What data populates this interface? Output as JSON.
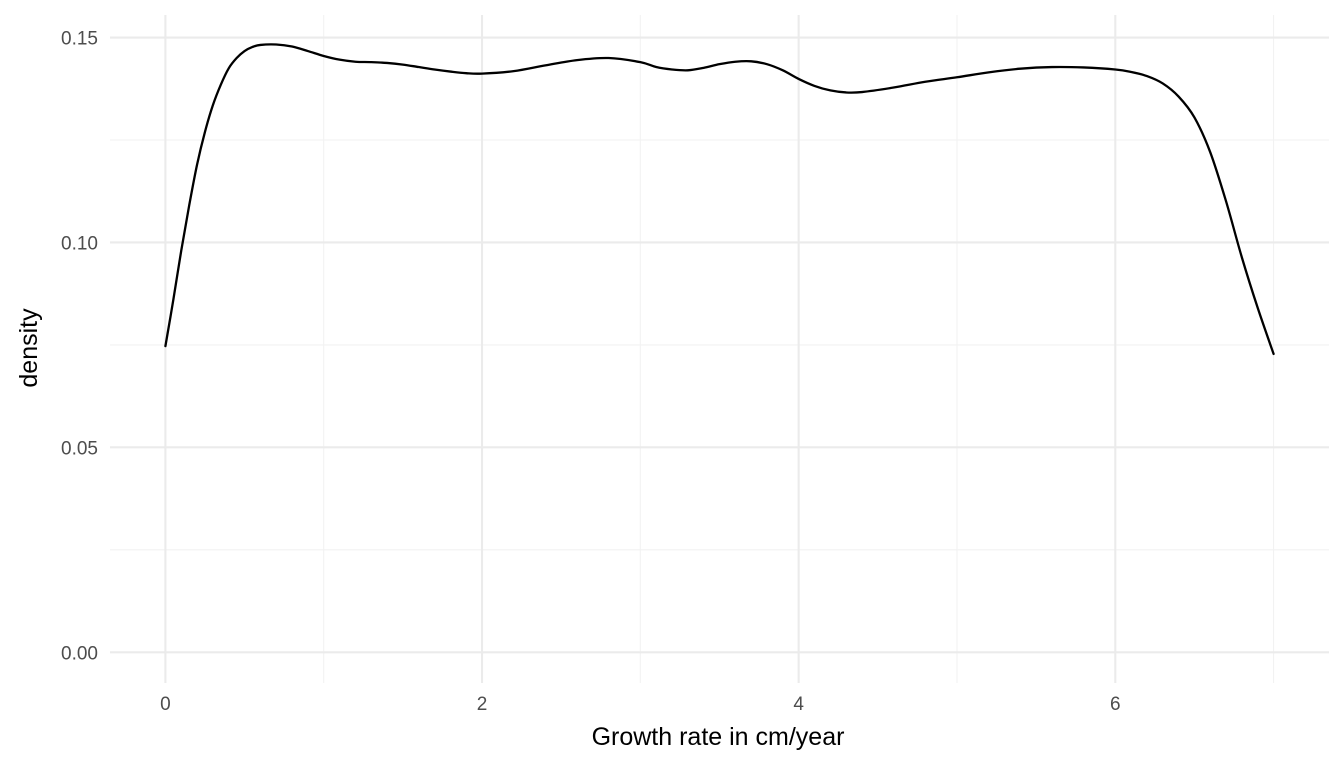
{
  "chart_data": {
    "type": "line",
    "title": "",
    "xlabel": "Growth rate in cm/year",
    "ylabel": "density",
    "xlim": [
      -0.35,
      7.35
    ],
    "ylim": [
      -0.0075,
      0.1555
    ],
    "x_ticks": [
      0,
      2,
      4,
      6
    ],
    "x_tick_labels": [
      "0",
      "2",
      "4",
      "6"
    ],
    "x_minor_ticks": [
      1,
      3,
      5,
      7
    ],
    "y_ticks": [
      0.0,
      0.05,
      0.1,
      0.15
    ],
    "y_tick_labels": [
      "0.00",
      "0.05",
      "0.10",
      "0.15"
    ],
    "y_minor_ticks": [
      0.025,
      0.075,
      0.125
    ],
    "grid": true,
    "legend": "none",
    "line_color": "#000000",
    "series": [
      {
        "x": [
          0.0,
          0.05,
          0.1,
          0.15,
          0.2,
          0.25,
          0.3,
          0.35,
          0.4,
          0.45,
          0.5,
          0.55,
          0.6,
          0.7,
          0.8,
          0.9,
          1.0,
          1.1,
          1.2,
          1.3,
          1.4,
          1.5,
          1.6,
          1.7,
          1.8,
          1.9,
          2.0,
          2.2,
          2.4,
          2.6,
          2.8,
          3.0,
          3.1,
          3.2,
          3.3,
          3.4,
          3.5,
          3.6,
          3.7,
          3.8,
          3.9,
          4.0,
          4.1,
          4.2,
          4.3,
          4.4,
          4.6,
          4.8,
          5.0,
          5.2,
          5.4,
          5.6,
          5.8,
          6.0,
          6.1,
          6.2,
          6.3,
          6.4,
          6.5,
          6.6,
          6.7,
          6.8,
          6.9,
          7.0
        ],
        "y": [
          0.0747,
          0.086,
          0.098,
          0.109,
          0.119,
          0.127,
          0.1335,
          0.1385,
          0.1425,
          0.145,
          0.1467,
          0.1477,
          0.1482,
          0.1483,
          0.1478,
          0.1467,
          0.1455,
          0.1446,
          0.1441,
          0.144,
          0.1438,
          0.1434,
          0.1428,
          0.1422,
          0.1417,
          0.1413,
          0.1412,
          0.1418,
          0.1432,
          0.1445,
          0.145,
          0.144,
          0.1428,
          0.1422,
          0.142,
          0.1426,
          0.1435,
          0.1441,
          0.1442,
          0.1435,
          0.142,
          0.1399,
          0.1382,
          0.1371,
          0.1366,
          0.1367,
          0.1378,
          0.1392,
          0.1403,
          0.1415,
          0.1424,
          0.1428,
          0.1427,
          0.1422,
          0.1416,
          0.1406,
          0.1388,
          0.1356,
          0.1305,
          0.122,
          0.11,
          0.0963,
          0.084,
          0.0728
        ]
      }
    ]
  }
}
